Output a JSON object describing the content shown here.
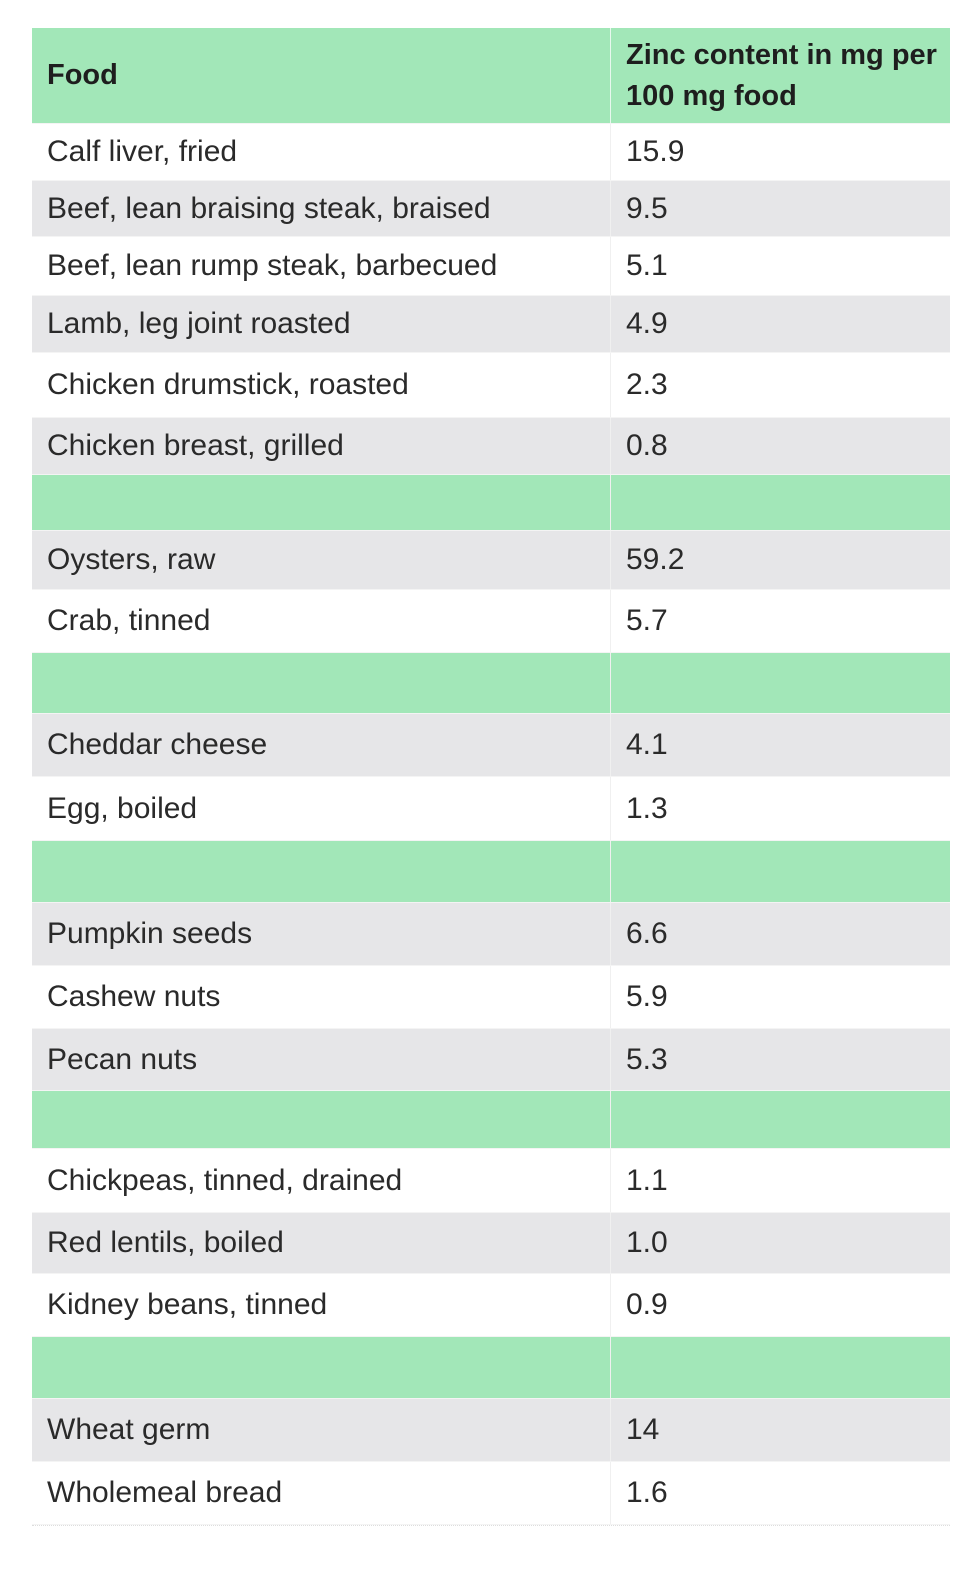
{
  "colors": {
    "header": "#a2e7b8",
    "section": "#a2e7b8",
    "stripe": "#e6e6e8",
    "white": "#ffffff"
  },
  "header": {
    "food": "Food",
    "zinc": "Zinc content in mg per 100 mg food"
  },
  "rows": [
    {
      "type": "white",
      "food": "Calf liver, fried",
      "zinc": "15.9"
    },
    {
      "type": "gray",
      "food": "Beef, lean braising steak, braised",
      "zinc": "9.5"
    },
    {
      "type": "white",
      "food": "Beef, lean rump steak, barbecued",
      "zinc": "5.1"
    },
    {
      "type": "gray",
      "food": "Lamb, leg joint roasted",
      "zinc": "4.9"
    },
    {
      "type": "white",
      "food": "Chicken drumstick, roasted",
      "zinc": "2.3"
    },
    {
      "type": "gray",
      "food": "Chicken breast, grilled",
      "zinc": "0.8"
    },
    {
      "type": "green",
      "food": "",
      "zinc": ""
    },
    {
      "type": "gray",
      "food": "Oysters, raw",
      "zinc": "59.2"
    },
    {
      "type": "white",
      "food": "Crab, tinned",
      "zinc": "5.7"
    },
    {
      "type": "green",
      "food": "",
      "zinc": ""
    },
    {
      "type": "gray",
      "food": "Cheddar cheese",
      "zinc": "4.1"
    },
    {
      "type": "white",
      "food": "Egg, boiled",
      "zinc": "1.3"
    },
    {
      "type": "green",
      "food": "",
      "zinc": ""
    },
    {
      "type": "gray",
      "food": "Pumpkin seeds",
      "zinc": "6.6"
    },
    {
      "type": "white",
      "food": "Cashew nuts",
      "zinc": "5.9"
    },
    {
      "type": "gray",
      "food": "Pecan nuts",
      "zinc": "5.3"
    },
    {
      "type": "green",
      "food": "",
      "zinc": ""
    },
    {
      "type": "white",
      "food": "Chickpeas, tinned, drained",
      "zinc": "1.1"
    },
    {
      "type": "gray",
      "food": "Red lentils, boiled",
      "zinc": "1.0"
    },
    {
      "type": "white",
      "food": "Kidney beans, tinned",
      "zinc": "0.9"
    },
    {
      "type": "green",
      "food": "",
      "zinc": ""
    },
    {
      "type": "gray",
      "food": "Wheat germ",
      "zinc": "14"
    },
    {
      "type": "white",
      "food": "Wholemeal bread",
      "zinc": "1.6"
    }
  ]
}
